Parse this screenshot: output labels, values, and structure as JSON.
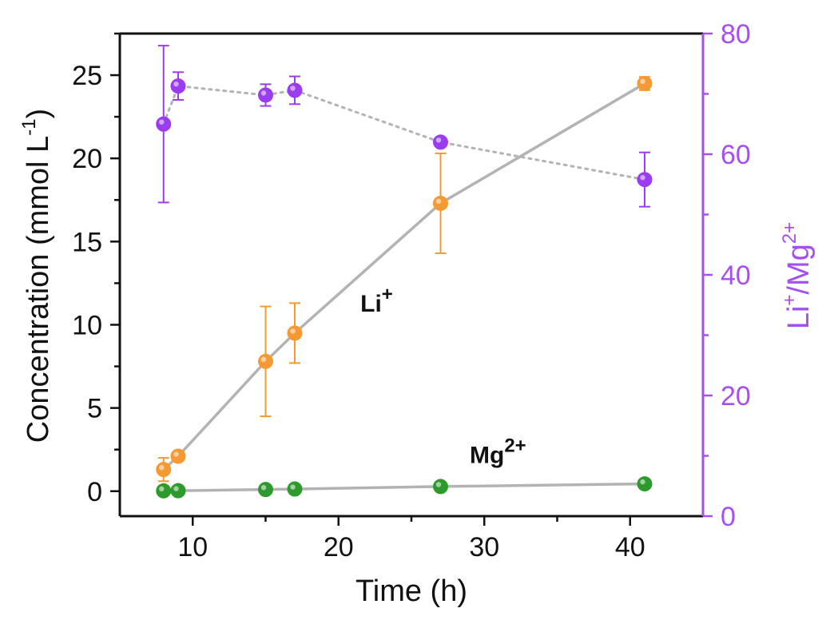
{
  "chart_data": {
    "type": "line",
    "x": [
      8,
      9,
      15,
      17,
      27,
      41
    ],
    "xlabel": "Time (h)",
    "xlim": [
      5,
      45
    ],
    "xticks": [
      10,
      20,
      30,
      40
    ],
    "ylabel": {
      "main": "Concentration (mmol L",
      "sup": "-1",
      "close": ")"
    },
    "ylim": [
      -1.5,
      27.5
    ],
    "yticks": [
      0,
      5,
      10,
      15,
      20,
      25
    ],
    "y2label": {
      "a": "Li",
      "a_sup": "+",
      "b": "/Mg",
      "b_sup": "2+"
    },
    "y2lim": [
      0,
      80
    ],
    "y2ticks": [
      0,
      20,
      40,
      60,
      80
    ],
    "series": [
      {
        "name": "Li+",
        "axis": "left",
        "color": "#f59a32",
        "line_color": "#b3b3b3",
        "line_style": "solid",
        "y": [
          1.3,
          2.1,
          7.8,
          9.5,
          17.3,
          24.5
        ],
        "err": [
          0.7,
          0.2,
          3.3,
          1.8,
          3.0,
          0.4
        ]
      },
      {
        "name": "Mg2+",
        "axis": "left",
        "color": "#2e9a2e",
        "line_color": "#b3b3b3",
        "line_style": "solid",
        "y": [
          0.02,
          0.03,
          0.1,
          0.13,
          0.28,
          0.44
        ],
        "err": [
          0,
          0,
          0,
          0,
          0,
          0
        ]
      },
      {
        "name": "Li+/Mg2+",
        "axis": "right",
        "color": "#9c3cf0",
        "line_color": "#b3b3b3",
        "line_style": "dotted",
        "y": [
          65,
          71.3,
          69.8,
          70.6,
          62,
          55.8
        ],
        "err": [
          13,
          2.3,
          1.8,
          2.3,
          0,
          4.5
        ]
      }
    ],
    "annotations": [
      {
        "id": "li",
        "text": "Li",
        "sup": "+",
        "x": 21.5,
        "y": 10.8
      },
      {
        "id": "mg",
        "text": "Mg",
        "sup": "2+",
        "x": 29,
        "y": 1.7
      }
    ],
    "right_axis_color": "#a64ff0",
    "grid": false,
    "legend": "none"
  }
}
